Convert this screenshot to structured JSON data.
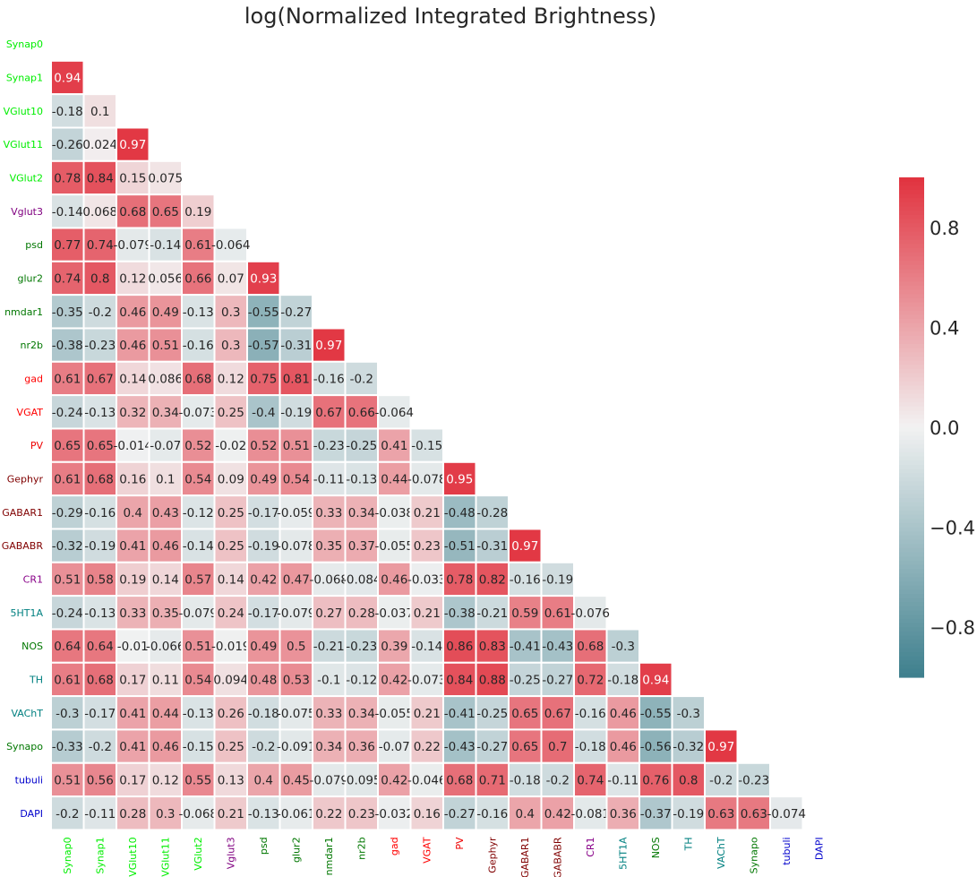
{
  "chart_data": {
    "type": "heatmap",
    "title": "log(Normalized Integrated Brightness)",
    "labels": [
      "Synap0",
      "Synap1",
      "VGlut10",
      "VGlut11",
      "VGlut2",
      "Vglut3",
      "psd",
      "glur2",
      "nmdar1",
      "nr2b",
      "gad",
      "VGAT",
      "PV",
      "Gephyr",
      "GABAR1",
      "GABABR",
      "CR1",
      "5HT1A",
      "NOS",
      "TH",
      "VAChT",
      "Synapo",
      "tubuli",
      "DAPI"
    ],
    "label_colors": [
      "#00ee00",
      "#00ee00",
      "#00ee00",
      "#00ee00",
      "#00ee00",
      "#800080",
      "#007700",
      "#007700",
      "#007700",
      "#007700",
      "#ff0000",
      "#ff0000",
      "#ee0000",
      "#800000",
      "#800000",
      "#800000",
      "#880088",
      "#008080",
      "#007700",
      "#008080",
      "#008080",
      "#007700",
      "#0000cc",
      "#0000cc"
    ],
    "display_values": [
      [],
      [
        "0.94"
      ],
      [
        "-0.18",
        "0.1"
      ],
      [
        "-0.26",
        "0.024",
        "0.97"
      ],
      [
        "0.78",
        "0.84",
        "0.15",
        "0.075"
      ],
      [
        "-0.14",
        "0.068",
        "0.68",
        "0.65",
        "0.19"
      ],
      [
        "0.77",
        "0.74",
        "-0.079",
        "-0.14",
        "0.61",
        "-0.064"
      ],
      [
        "0.74",
        "0.8",
        "0.12",
        "0.056",
        "0.66",
        "0.07",
        "0.93"
      ],
      [
        "-0.35",
        "-0.2",
        "0.46",
        "0.49",
        "-0.13",
        "0.3",
        "-0.55",
        "-0.27"
      ],
      [
        "-0.38",
        "-0.23",
        "0.46",
        "0.51",
        "-0.16",
        "0.3",
        "-0.57",
        "-0.31",
        "0.97"
      ],
      [
        "0.61",
        "0.67",
        "0.14",
        "0.086",
        "0.68",
        "0.12",
        "0.75",
        "0.81",
        "-0.16",
        "-0.2"
      ],
      [
        "-0.24",
        "-0.13",
        "0.32",
        "0.34",
        "-0.073",
        "0.25",
        "-0.4",
        "-0.19",
        "0.67",
        "0.66",
        "-0.064"
      ],
      [
        "0.65",
        "0.65",
        "-0.014",
        "-0.07",
        "0.52",
        "-0.02",
        "0.52",
        "0.51",
        "-0.23",
        "-0.25",
        "0.41",
        "-0.15"
      ],
      [
        "0.61",
        "0.68",
        "0.16",
        "0.1",
        "0.54",
        "0.09",
        "0.49",
        "0.54",
        "-0.11",
        "-0.13",
        "0.44",
        "-0.078",
        "0.95"
      ],
      [
        "-0.29",
        "-0.16",
        "0.4",
        "0.43",
        "-0.12",
        "0.25",
        "-0.17",
        "-0.059",
        "0.33",
        "0.34",
        "-0.038",
        "0.21",
        "-0.48",
        "-0.28"
      ],
      [
        "-0.32",
        "-0.19",
        "0.41",
        "0.46",
        "-0.14",
        "0.25",
        "-0.19",
        "-0.078",
        "0.35",
        "0.37",
        "-0.055",
        "0.23",
        "-0.51",
        "-0.31",
        "0.97"
      ],
      [
        "0.51",
        "0.58",
        "0.19",
        "0.14",
        "0.57",
        "0.14",
        "0.42",
        "0.47",
        "-0.068",
        "-0.084",
        "0.46",
        "-0.033",
        "0.78",
        "0.82",
        "-0.16",
        "-0.19"
      ],
      [
        "-0.24",
        "-0.13",
        "0.33",
        "0.35",
        "-0.079",
        "0.24",
        "-0.17",
        "-0.079",
        "0.27",
        "0.28",
        "-0.037",
        "0.21",
        "-0.38",
        "-0.21",
        "0.59",
        "0.61",
        "-0.076"
      ],
      [
        "0.64",
        "0.64",
        "-0.01",
        "-0.066",
        "0.51",
        "-0.019",
        "0.49",
        "0.5",
        "-0.21",
        "-0.23",
        "0.39",
        "-0.14",
        "0.86",
        "0.83",
        "-0.41",
        "-0.43",
        "0.68",
        "-0.3"
      ],
      [
        "0.61",
        "0.68",
        "0.17",
        "0.11",
        "0.54",
        "0.094",
        "0.48",
        "0.53",
        "-0.1",
        "-0.12",
        "0.42",
        "-0.073",
        "0.84",
        "0.88",
        "-0.25",
        "-0.27",
        "0.72",
        "-0.18",
        "0.94"
      ],
      [
        "-0.3",
        "-0.17",
        "0.41",
        "0.44",
        "-0.13",
        "0.26",
        "-0.18",
        "-0.075",
        "0.33",
        "0.34",
        "-0.055",
        "0.21",
        "-0.41",
        "-0.25",
        "0.65",
        "0.67",
        "-0.16",
        "0.46",
        "-0.55",
        "-0.3"
      ],
      [
        "-0.33",
        "-0.2",
        "0.41",
        "0.46",
        "-0.15",
        "0.25",
        "-0.2",
        "-0.091",
        "0.34",
        "0.36",
        "-0.07",
        "0.22",
        "-0.43",
        "-0.27",
        "0.65",
        "0.7",
        "-0.18",
        "0.46",
        "-0.56",
        "-0.32",
        "0.97"
      ],
      [
        "0.51",
        "0.56",
        "0.17",
        "0.12",
        "0.55",
        "0.13",
        "0.4",
        "0.45",
        "-0.079",
        "-0.095",
        "0.42",
        "-0.046",
        "0.68",
        "0.71",
        "-0.18",
        "-0.2",
        "0.74",
        "-0.11",
        "0.76",
        "0.8",
        "-0.2",
        "-0.23"
      ],
      [
        "-0.2",
        "-0.11",
        "0.28",
        "0.3",
        "-0.068",
        "0.21",
        "-0.13",
        "-0.061",
        "0.22",
        "0.23",
        "-0.032",
        "0.16",
        "-0.27",
        "-0.16",
        "0.4",
        "0.42",
        "-0.081",
        "0.36",
        "-0.37",
        "-0.19",
        "0.63",
        "0.63",
        "-0.074"
      ]
    ],
    "colorbar": {
      "range": [
        -1,
        1
      ],
      "ticks": [
        0.8,
        0.4,
        0.0,
        -0.4,
        -0.8
      ],
      "tick_labels": [
        "0.8",
        "0.4",
        "0.0",
        "−0.4",
        "−0.8"
      ],
      "colors": {
        "low": "#3d7f8d",
        "mid": "#f2f2f2",
        "high": "#e1323f"
      }
    },
    "mask": "upper-triangle-and-diagonal",
    "legend_position": "right"
  }
}
